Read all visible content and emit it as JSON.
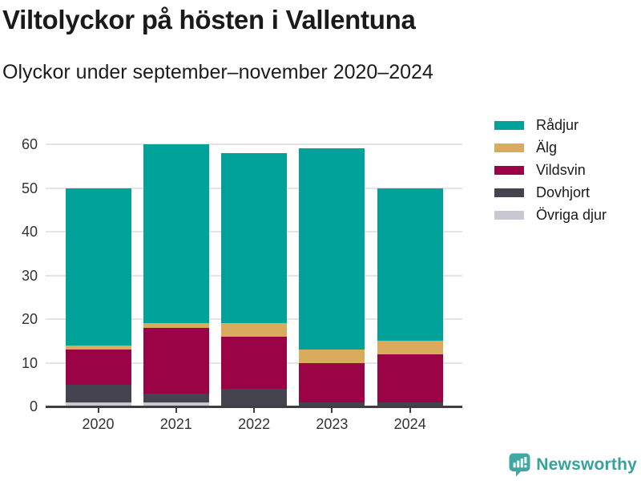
{
  "header": {
    "title": "Viltolyckor på hösten i Vallentuna",
    "subtitle": "Olyckor under september–november 2020–2024"
  },
  "chart_data": {
    "type": "bar",
    "stacked": true,
    "categories": [
      "2020",
      "2021",
      "2022",
      "2023",
      "2024"
    ],
    "series": [
      {
        "name": "Rådjur",
        "color": "#00a29a",
        "values": [
          36,
          41,
          39,
          46,
          35
        ]
      },
      {
        "name": "Älg",
        "color": "#d9ab5c",
        "values": [
          1,
          1,
          3,
          3,
          3
        ]
      },
      {
        "name": "Vildsvin",
        "color": "#9a0345",
        "values": [
          8,
          15,
          12,
          9,
          11
        ]
      },
      {
        "name": "Dovhjort",
        "color": "#45434f",
        "values": [
          4,
          2,
          4,
          1,
          1
        ]
      },
      {
        "name": "Övriga djur",
        "color": "#c7c8d1",
        "values": [
          1,
          1,
          0,
          0,
          0
        ]
      }
    ],
    "totals": [
      50,
      60,
      58,
      59,
      50
    ],
    "title": "Viltolyckor på hösten i Vallentuna",
    "xlabel": "",
    "ylabel": "",
    "ylim": [
      0,
      60
    ],
    "yticks": [
      0,
      10,
      20,
      30,
      40,
      50,
      60
    ],
    "grid": true,
    "grid_color": "#e4e4e6",
    "axis_color": "#3d3d42",
    "tick_label_color": "#333333",
    "legend_position": "right",
    "stack_order_bottom_to_top": [
      "Övriga djur",
      "Dovhjort",
      "Vildsvin",
      "Älg",
      "Rådjur"
    ]
  },
  "footer": {
    "brand": "Newsworthy",
    "brand_color": "#35a29b",
    "logo_icon": "bar-chart-speech-bubble-icon"
  }
}
